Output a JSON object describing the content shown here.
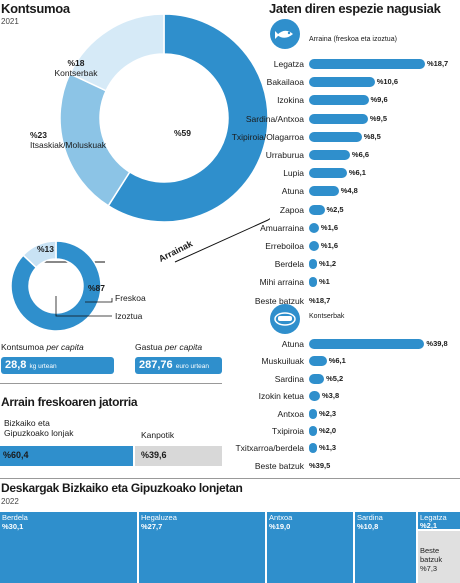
{
  "consumption": {
    "title": "Kontsumoa",
    "year": "2021",
    "arrainak_label": "Arrainak",
    "donut": [
      {
        "pct": "%59",
        "label": "",
        "color": "#2f8fcc"
      },
      {
        "pct": "%23",
        "label": "Itsaskiak/Moluskuak",
        "color": "#8cc4e6"
      },
      {
        "pct": "%18",
        "label": "Kontserbak",
        "color": "#d6eaf7"
      }
    ],
    "small_donut": [
      {
        "pct": "%87",
        "label": "Freskoa",
        "color": "#2f8fcc"
      },
      {
        "pct": "%13",
        "label": "Izoztua",
        "color": "#c8e2f4"
      }
    ]
  },
  "per_capita": {
    "consumption_label_a": "Kontsumoa",
    "consumption_label_b": "per capita",
    "consumption_value": "28,8",
    "consumption_unit": "kg urtean",
    "spending_label_a": "Gastua",
    "spending_label_b": "per capita",
    "spending_value": "287,76",
    "spending_unit": "euro urtean"
  },
  "origin": {
    "title": "Arrain freskoaren jatorria",
    "left_label_1": "Bizkaiko eta",
    "left_label_2": "Gipuzkoako lonjak",
    "right_label": "Kanpotik",
    "left_value": "%60,4",
    "right_value": "%39,6",
    "left_color": "#2f8fcc",
    "right_color": "#d8d8d8"
  },
  "species": {
    "title": "Jaten diren espezie nagusiak",
    "fish_icon": "fish-hook-icon",
    "fresh_legend": "Arraina (freskoa eta izoztua)",
    "canned_icon": "tin-can-icon",
    "canned_legend": "Kontserbak"
  },
  "treemap": {
    "title": "Deskargak Bizkaiko eta Gipuzkoako lonjetan",
    "year": "2022",
    "cells": [
      {
        "name": "Berdela",
        "pct": "%30,1"
      },
      {
        "name": "Hegaluzea",
        "pct": "%27,7"
      },
      {
        "name": "Antxoa",
        "pct": "%19,0"
      },
      {
        "name": "Sardina",
        "pct": "%10,8"
      },
      {
        "name": "Legatza",
        "pct": "%2,1"
      },
      {
        "name": "Beste batzuk",
        "pct": "%7,3"
      }
    ]
  },
  "chart_data": [
    {
      "type": "pie",
      "title": "Kontsumoa",
      "subtitle": "2021",
      "categories": [
        "",
        "Itsaskiak/Moluskuak",
        "Kontserbak"
      ],
      "values": [
        59,
        23,
        18
      ]
    },
    {
      "type": "pie",
      "title": "Arrainak",
      "categories": [
        "Freskoa",
        "Izoztua"
      ],
      "values": [
        87,
        13
      ]
    },
    {
      "type": "bar",
      "title": "Jaten diren espezie nagusiak",
      "subtitle": "Arraina (freskoa eta izoztua)",
      "categories": [
        "Legatza",
        "Bakailaoa",
        "Izokina",
        "Sardina/Antxoa",
        "Txipiroia/Olagarroa",
        "Urraburua",
        "Lupia",
        "Atuna",
        "Zapoa",
        "Amuarraina",
        "Erreboiloa",
        "Berdela",
        "Mihi arraina",
        "Beste batzuk"
      ],
      "values": [
        18.7,
        10.6,
        9.6,
        9.5,
        8.5,
        6.6,
        6.1,
        4.8,
        2.5,
        1.6,
        1.6,
        1.2,
        1.0,
        18.7
      ],
      "labels": [
        "%18,7",
        "%10,6",
        "%9,6",
        "%9,5",
        "%8,5",
        "%6,6",
        "%6,1",
        "%4,8",
        "%2,5",
        "%1,6",
        "%1,6",
        "%1,2",
        "%1",
        "%18,7"
      ],
      "bar_drawn": [
        true,
        true,
        true,
        true,
        true,
        true,
        true,
        true,
        true,
        true,
        true,
        true,
        true,
        false
      ]
    },
    {
      "type": "bar",
      "title": "Kontserbak",
      "categories": [
        "Atuna",
        "Muskuiluak",
        "Sardina",
        "Izokin ketua",
        "Antxoa",
        "Txipiroia",
        "Txitxarroa/berdela",
        "Beste batzuk"
      ],
      "values": [
        39.8,
        6.1,
        5.2,
        3.8,
        2.3,
        2.0,
        1.3,
        39.5
      ],
      "labels": [
        "%39,8",
        "%6,1",
        "%5,2",
        "%3,8",
        "%2,3",
        "%2,0",
        "%1,3",
        "%39,5"
      ],
      "bar_drawn": [
        true,
        true,
        true,
        true,
        true,
        true,
        true,
        false
      ]
    },
    {
      "type": "bar",
      "title": "Arrain freskoaren jatorria",
      "categories": [
        "Bizkaiko eta Gipuzkoako lonjak",
        "Kanpotik"
      ],
      "values": [
        60.4,
        39.6
      ],
      "stacked": true
    },
    {
      "type": "heatmap",
      "title": "Deskargak Bizkaiko eta Gipuzkoako lonjetan",
      "subtitle": "2022",
      "categories": [
        "Berdela",
        "Hegaluzea",
        "Antxoa",
        "Sardina",
        "Legatza",
        "Beste batzuk"
      ],
      "values": [
        30.1,
        27.7,
        19.0,
        10.8,
        2.1,
        7.3
      ]
    }
  ]
}
